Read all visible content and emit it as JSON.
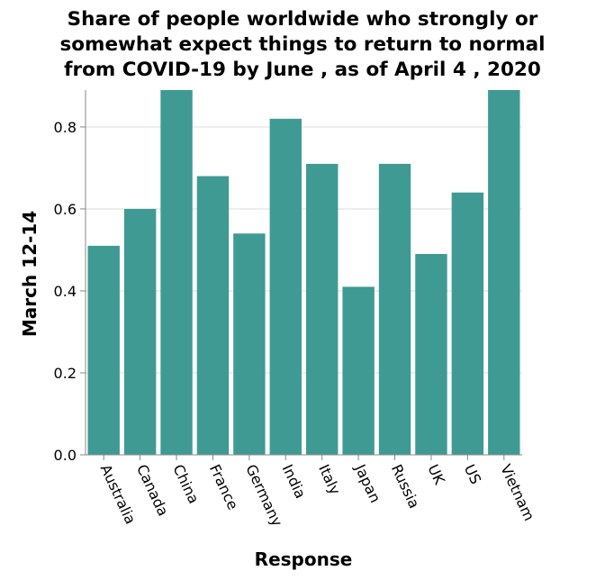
{
  "chart_data": {
    "type": "bar",
    "title_lines": [
      "Share of people worldwide who strongly or",
      "somewhat expect things to return to normal",
      "from COVID-19 by June , as of April 4 , 2020"
    ],
    "xlabel": "Response",
    "ylabel": "March 12-14",
    "categories": [
      "Australia",
      "Canada",
      "China",
      "France",
      "Germany",
      "India",
      "Italy",
      "Japan",
      "Russia",
      "UK",
      "US",
      "Vietnam"
    ],
    "values": [
      0.51,
      0.6,
      0.89,
      0.68,
      0.54,
      0.82,
      0.71,
      0.41,
      0.71,
      0.49,
      0.64,
      0.89
    ],
    "ylim": [
      0,
      0.89
    ],
    "yticks": [
      0.0,
      0.2,
      0.4,
      0.6,
      0.8
    ],
    "ytick_labels": [
      "0.0",
      "0.2",
      "0.4",
      "0.6",
      "0.8"
    ],
    "grid": true,
    "bar_color": "#409a94"
  }
}
